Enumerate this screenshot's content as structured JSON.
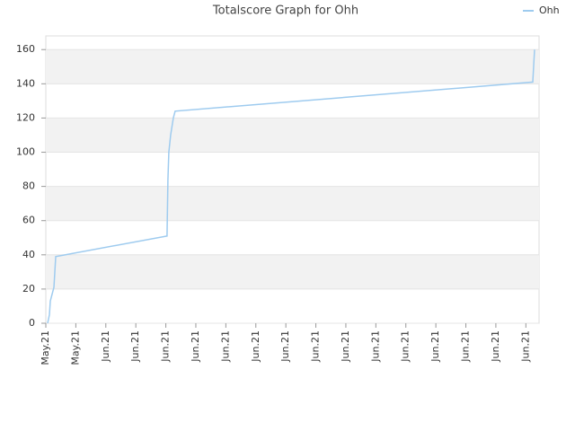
{
  "chart_data": {
    "type": "line",
    "title": "Totalscore Graph for Ohh",
    "x": [
      0.06,
      0.12,
      0.15,
      0.27,
      0.33,
      4.04,
      4.07,
      4.1,
      4.16,
      4.25,
      4.31,
      16.23,
      16.29
    ],
    "series": [
      {
        "name": "Ohh",
        "color": "#9ecbef",
        "values": [
          0,
          5,
          13,
          21,
          39,
          51,
          84,
          100,
          110,
          120,
          124,
          141,
          160
        ]
      }
    ],
    "xlim": [
      0,
      16.44
    ],
    "xticks": [
      {
        "value": 0,
        "label": "May.21"
      },
      {
        "value": 1,
        "label": "May.21"
      },
      {
        "value": 2,
        "label": "Jun.21"
      },
      {
        "value": 3,
        "label": "Jun.21"
      },
      {
        "value": 4,
        "label": "Jun.21"
      },
      {
        "value": 5,
        "label": "Jun.21"
      },
      {
        "value": 6,
        "label": "Jun.21"
      },
      {
        "value": 7,
        "label": "Jun.21"
      },
      {
        "value": 8,
        "label": "Jun.21"
      },
      {
        "value": 9,
        "label": "Jun.21"
      },
      {
        "value": 10,
        "label": "Jun.21"
      },
      {
        "value": 11,
        "label": "Jun.21"
      },
      {
        "value": 12,
        "label": "Jun.21"
      },
      {
        "value": 13,
        "label": "Jun.21"
      },
      {
        "value": 14,
        "label": "Jun.21"
      },
      {
        "value": 15,
        "label": "Jun.21"
      },
      {
        "value": 16,
        "label": "Jun.21"
      }
    ],
    "ylim": [
      0,
      168
    ],
    "yticks": [
      0,
      20,
      40,
      60,
      80,
      100,
      120,
      140,
      160
    ],
    "grid": true,
    "legend": "top-right"
  }
}
